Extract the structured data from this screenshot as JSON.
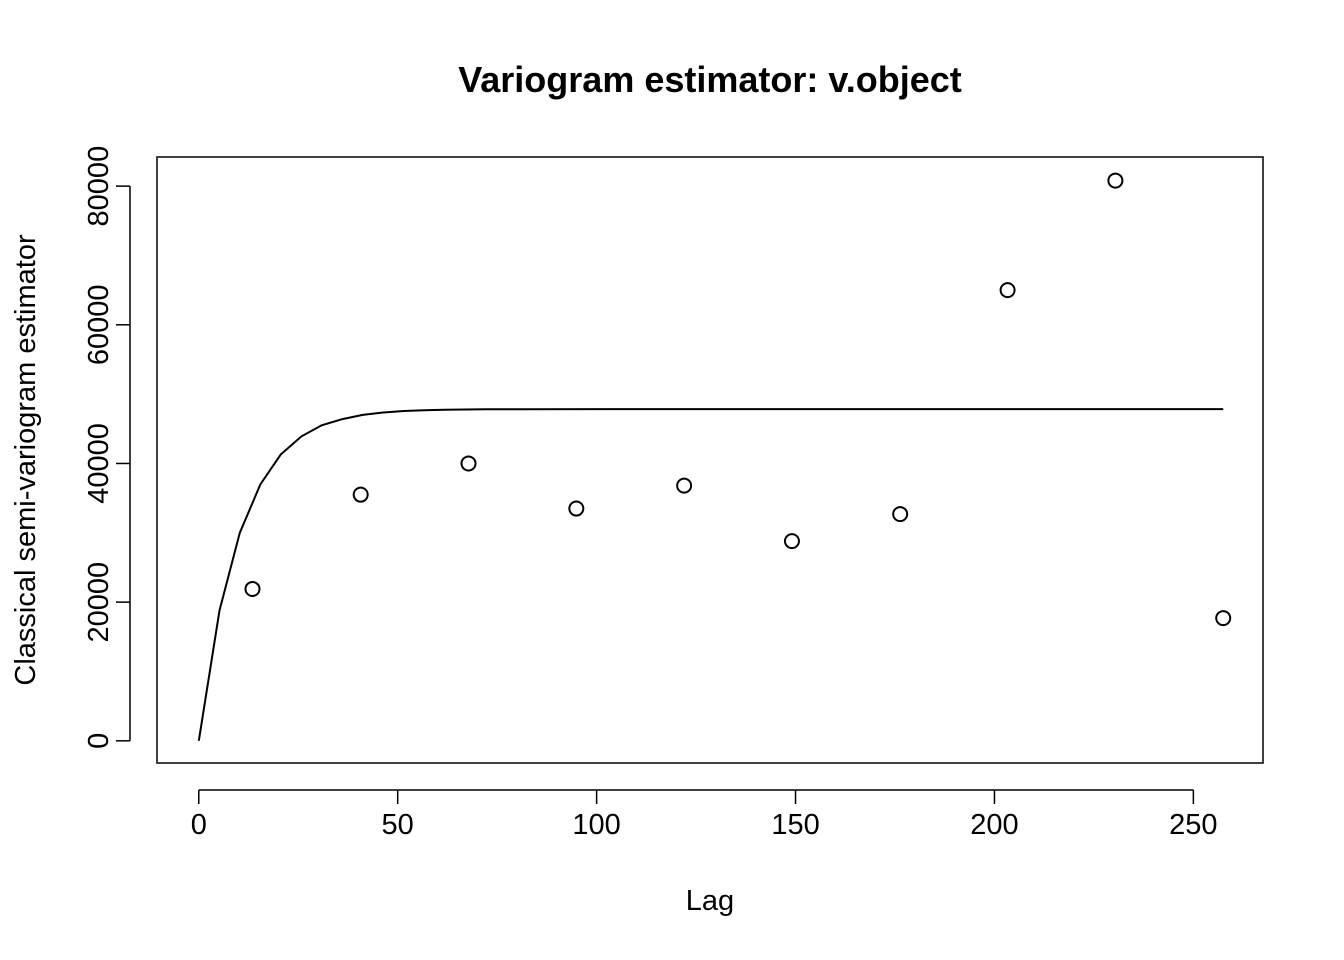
{
  "chart_data": {
    "type": "scatter",
    "title": "Variogram estimator: v.object",
    "xlabel": "Lag",
    "ylabel": "Classical semi-variogram estimator",
    "xlim": [
      -10.5,
      267.5
    ],
    "ylim": [
      -3200,
      84200
    ],
    "x_ticks": [
      0,
      50,
      100,
      150,
      200,
      250
    ],
    "y_ticks": [
      0,
      20000,
      40000,
      60000,
      80000
    ],
    "grid": false,
    "legend": "none",
    "series": [
      {
        "type": "scatter",
        "marker": "open-circle",
        "color": "#000000",
        "points": [
          {
            "x": 13.5,
            "y": 21900
          },
          {
            "x": 40.7,
            "y": 35500
          },
          {
            "x": 67.8,
            "y": 40000
          },
          {
            "x": 94.9,
            "y": 33500
          },
          {
            "x": 122.0,
            "y": 36800
          },
          {
            "x": 149.1,
            "y": 28800
          },
          {
            "x": 176.3,
            "y": 32700
          },
          {
            "x": 203.3,
            "y": 65000
          },
          {
            "x": 230.4,
            "y": 80800
          },
          {
            "x": 257.5,
            "y": 17700
          }
        ]
      },
      {
        "type": "line",
        "color": "#000000",
        "points": [
          {
            "x": 0,
            "y": 0
          },
          {
            "x": 5.2,
            "y": 18800
          },
          {
            "x": 10.3,
            "y": 30000
          },
          {
            "x": 15.5,
            "y": 37000
          },
          {
            "x": 20.6,
            "y": 41300
          },
          {
            "x": 25.8,
            "y": 43900
          },
          {
            "x": 30.9,
            "y": 45500
          },
          {
            "x": 36.1,
            "y": 46400
          },
          {
            "x": 41.2,
            "y": 47000
          },
          {
            "x": 46.4,
            "y": 47350
          },
          {
            "x": 51.5,
            "y": 47560
          },
          {
            "x": 56.7,
            "y": 47680
          },
          {
            "x": 61.8,
            "y": 47750
          },
          {
            "x": 67.0,
            "y": 47790
          },
          {
            "x": 72.1,
            "y": 47810
          },
          {
            "x": 82.4,
            "y": 47830
          },
          {
            "x": 103.0,
            "y": 47840
          },
          {
            "x": 154.5,
            "y": 47840
          },
          {
            "x": 206.0,
            "y": 47840
          },
          {
            "x": 257.5,
            "y": 47840
          }
        ]
      }
    ]
  }
}
